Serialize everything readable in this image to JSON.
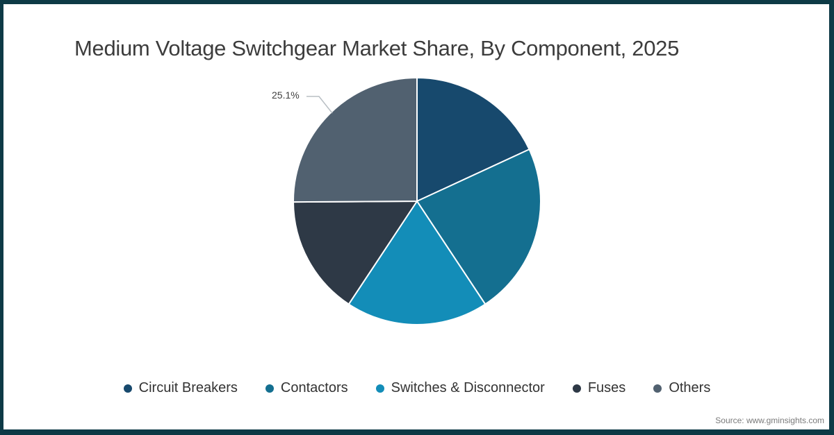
{
  "header": {
    "title": "Medium Voltage Switchgear Market Share, By Component, 2025"
  },
  "footer": {
    "source": "Source: www.gminsights.com"
  },
  "annotation": {
    "others_share_label": "25.1%"
  },
  "theme": {
    "frame_color": "#0d3a46",
    "background": "#ffffff",
    "title_color": "#3c3c3c",
    "legend_text_color": "#333333",
    "source_text_color": "#7a7a7a",
    "leader_line_color": "#b9bfc4",
    "slice_separator_color": "#ffffff"
  },
  "chart_data": {
    "type": "pie",
    "title": "Medium Voltage Switchgear Market Share, By Component, 2025",
    "categories": [
      "Circuit Breakers",
      "Contactors",
      "Switches & Disconnector",
      "Fuses",
      "Others"
    ],
    "values": [
      18.1,
      22.6,
      18.6,
      15.6,
      25.1
    ],
    "colors": [
      "#17496d",
      "#146f90",
      "#138db8",
      "#2e3946",
      "#516170"
    ],
    "start_angle_deg": 0,
    "direction": "clockwise",
    "data_labels": [
      {
        "category": "Others",
        "label": "25.1%"
      }
    ],
    "legend_position": "bottom"
  }
}
